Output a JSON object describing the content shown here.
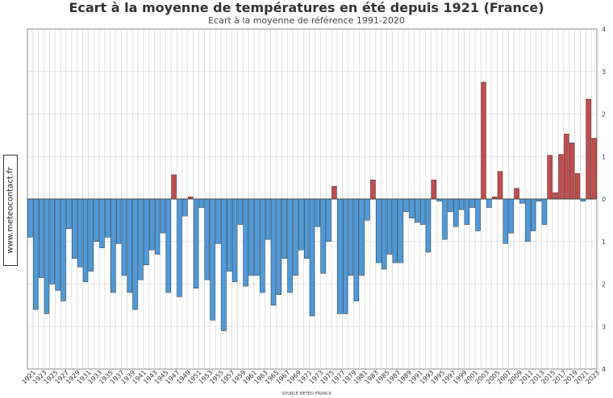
{
  "chart_data": {
    "type": "bar",
    "title": "Ecart à la moyenne de températures en été depuis 1921 (France)",
    "subtitle": "Ecart à la moyenne de référence 1991-2020",
    "source": "SOURCE METEO-FRANCE",
    "watermark": "www.meteocontact.fr",
    "ylim": [
      -4,
      4
    ],
    "y_ticks": [
      4,
      3,
      2,
      1,
      0,
      1,
      2,
      3,
      4
    ],
    "grid": true,
    "x_tick_labels": [
      "1921",
      "1923",
      "1925",
      "1927",
      "1929",
      "1931",
      "1933",
      "1935",
      "1937",
      "1939",
      "1941",
      "1943",
      "1945",
      "1947",
      "1949",
      "1951",
      "1953",
      "1955",
      "1957",
      "1959",
      "1961",
      "1963",
      "1965",
      "1967",
      "1969",
      "1971",
      "1973",
      "1975",
      "1977",
      "1979",
      "1981",
      "1983",
      "1985",
      "1987",
      "1989",
      "1991",
      "1993",
      "1995",
      "1997",
      "1999",
      "2001",
      "2003",
      "2005",
      "2007",
      "2009",
      "2011",
      "2013",
      "2015",
      "2017",
      "2019",
      "2021",
      "2023"
    ],
    "years": [
      1921,
      1922,
      1923,
      1924,
      1925,
      1926,
      1927,
      1928,
      1929,
      1930,
      1931,
      1932,
      1933,
      1934,
      1935,
      1936,
      1937,
      1938,
      1939,
      1940,
      1941,
      1942,
      1943,
      1944,
      1945,
      1946,
      1947,
      1948,
      1949,
      1950,
      1951,
      1952,
      1953,
      1954,
      1955,
      1956,
      1957,
      1958,
      1959,
      1960,
      1961,
      1962,
      1963,
      1964,
      1965,
      1966,
      1967,
      1968,
      1969,
      1970,
      1971,
      1972,
      1973,
      1974,
      1975,
      1976,
      1977,
      1978,
      1979,
      1980,
      1981,
      1982,
      1983,
      1984,
      1985,
      1986,
      1987,
      1988,
      1989,
      1990,
      1991,
      1992,
      1993,
      1994,
      1995,
      1996,
      1997,
      1998,
      1999,
      2000,
      2001,
      2002,
      2003,
      2004,
      2005,
      2006,
      2007,
      2008,
      2009,
      2010,
      2011,
      2012,
      2013,
      2014,
      2015,
      2016,
      2017,
      2018,
      2019,
      2020,
      2021,
      2022,
      2023
    ],
    "values": [
      -0.9,
      -2.6,
      -1.85,
      -2.7,
      -2.0,
      -2.15,
      -2.4,
      -0.7,
      -1.4,
      -1.6,
      -1.95,
      -1.7,
      -1.0,
      -1.15,
      -0.9,
      -2.2,
      -1.05,
      -1.8,
      -2.2,
      -2.6,
      -1.9,
      -1.55,
      -1.2,
      -1.3,
      -0.8,
      -2.2,
      0.57,
      -2.3,
      -0.4,
      0.05,
      -2.1,
      -0.2,
      -1.9,
      -2.85,
      -1.05,
      -3.1,
      -1.7,
      -1.95,
      -0.6,
      -2.05,
      -1.8,
      -1.8,
      -2.2,
      -0.95,
      -2.5,
      -2.25,
      -1.4,
      -2.2,
      -1.8,
      -1.2,
      -1.4,
      -2.75,
      -0.65,
      -1.75,
      -1.0,
      0.3,
      -2.7,
      -2.7,
      -1.8,
      -2.4,
      -1.8,
      -0.5,
      0.45,
      -1.5,
      -1.65,
      -1.3,
      -1.5,
      -1.5,
      -0.3,
      -0.45,
      -0.55,
      -0.6,
      -1.25,
      0.45,
      -0.05,
      -0.95,
      -0.3,
      -0.65,
      -0.25,
      -0.6,
      -0.2,
      -0.75,
      2.75,
      -0.2,
      0.05,
      0.65,
      -1.05,
      -0.8,
      0.25,
      -0.1,
      -1.0,
      -0.75,
      -0.05,
      -0.6,
      1.03,
      0.15,
      1.05,
      1.53,
      1.32,
      0.6,
      -0.05,
      2.35,
      1.43
    ],
    "colors": {
      "positive": "#c94a4a",
      "negative": "#4a9ce0",
      "grid": "#cccccc",
      "axis": "#888888",
      "baseline": "#444444"
    }
  }
}
